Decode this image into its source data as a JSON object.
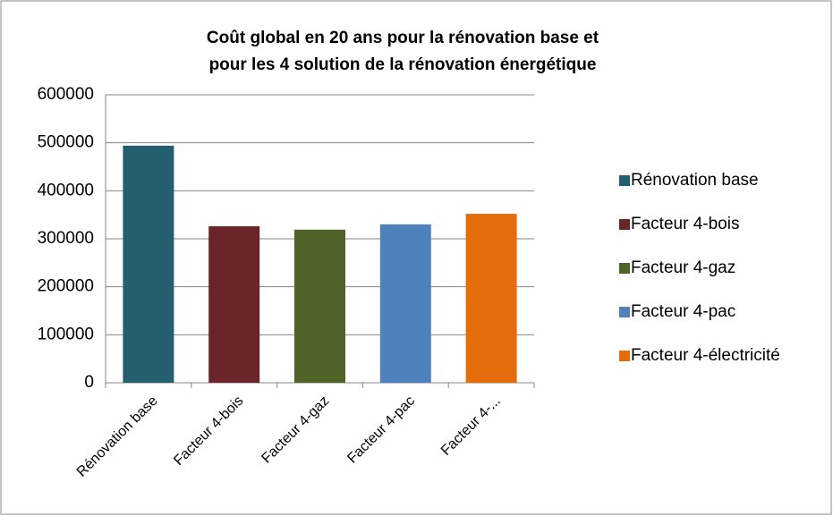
{
  "chart_data": {
    "type": "bar",
    "title": [
      "Coût global en 20 ans pour la rénovation base et",
      "pour les 4 solution de la rénovation énergétique"
    ],
    "categories": [
      "Rénovation base",
      "Facteur 4-bois",
      "Facteur 4-gaz",
      "Facteur 4-pac",
      "Facteur 4-..."
    ],
    "values": [
      494000,
      326000,
      319000,
      330000,
      352000
    ],
    "colors": [
      "#255e6e",
      "#6b2427",
      "#4f6228",
      "#4f81bd",
      "#e46c0a"
    ],
    "legend": [
      "Rénovation base",
      "Facteur 4-bois",
      "Facteur 4-gaz",
      "Facteur 4-pac",
      "Facteur 4-électricité"
    ],
    "ylim": [
      0,
      600000
    ],
    "yticks": [
      0,
      100000,
      200000,
      300000,
      400000,
      500000,
      600000
    ],
    "grid": true
  }
}
